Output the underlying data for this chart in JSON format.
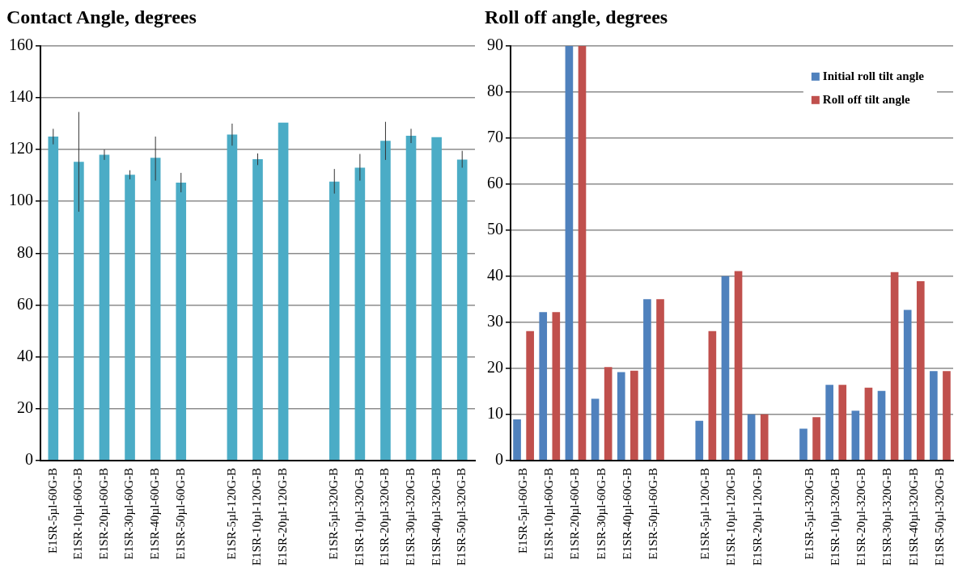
{
  "chart_data": [
    {
      "type": "bar",
      "title": "Contact Angle, degrees",
      "categories": [
        "E1SR-5µl-60G-B",
        "E1SR-10µl-60G-B",
        "E1SR-20µl-60G-B",
        "E1SR-30µl-60G-B",
        "E1SR-40µl-60G-B",
        "E1SR-50µl-60G-B",
        null,
        "E1SR-5µl-120G-B",
        "E1SR-10µl-120G-B",
        "E1SR-20µl-120G-B",
        null,
        "E1SR-5µl-320G-B",
        "E1SR-10µl-320G-B",
        "E1SR-20µl-320G-B",
        "E1SR-30µl-320G-B",
        "E1SR-40µl-320G-B",
        "E1SR-50µl-320G-B"
      ],
      "values": [
        125,
        115.3,
        118,
        110.3,
        116.8,
        107.2,
        null,
        125.8,
        116.3,
        130.4,
        null,
        107.6,
        113,
        123.4,
        125.3,
        124.8,
        116.1
      ],
      "errors": [
        [
          122,
          128
        ],
        [
          96,
          134.5
        ],
        [
          116,
          120
        ],
        [
          108.5,
          112
        ],
        [
          108,
          125
        ],
        [
          103.5,
          111
        ],
        null,
        [
          121.5,
          130
        ],
        [
          114,
          118.5
        ],
        null,
        null,
        [
          103,
          112.5
        ],
        [
          108,
          118.3
        ],
        [
          116,
          130.7
        ],
        [
          122.5,
          128
        ],
        null,
        [
          113,
          119.5
        ]
      ],
      "color": "#4bacc6",
      "ylim": [
        0,
        160
      ],
      "yticks": [
        0,
        20,
        40,
        60,
        80,
        100,
        120,
        140,
        160
      ],
      "grid": "y",
      "legend": false
    },
    {
      "type": "bar",
      "title": "Roll off angle, degrees",
      "categories": [
        "E1SR-5µl-60G-B",
        "E1SR-10µl-60G-B",
        "E1SR-20µl-60G-B",
        "E1SR-30µl-60G-B",
        "E1SR-40µl-60G-B",
        "E1SR-50µl-60G-B",
        null,
        "E1SR-5µl-120G-B",
        "E1SR-10µl-120G-B",
        "E1SR-20µl-120G-B",
        null,
        "E1SR-5µl-320G-B",
        "E1SR-10µl-320G-B",
        "E1SR-20µl-320G-B",
        "E1SR-30µl-320G-B",
        "E1SR-40µl-320G-B",
        "E1SR-50µl-320G-B"
      ],
      "series": [
        {
          "name": "Initial roll tilt angle",
          "color": "#4f81bd",
          "values": [
            8.9,
            32.2,
            90,
            13.4,
            19.2,
            35,
            null,
            8.6,
            40,
            10,
            null,
            6.9,
            16.4,
            10.8,
            15.1,
            32.7,
            19.4
          ]
        },
        {
          "name": "Roll off tilt angle",
          "color": "#c0504d",
          "values": [
            28.1,
            32.2,
            90,
            20.3,
            19.5,
            35,
            null,
            28.1,
            41.1,
            10,
            null,
            9.4,
            16.4,
            15.8,
            40.9,
            38.9,
            19.4
          ]
        }
      ],
      "ylim": [
        0,
        90
      ],
      "yticks": [
        0,
        10,
        20,
        30,
        40,
        50,
        60,
        70,
        80,
        90
      ],
      "grid": "y",
      "legend": "top right"
    }
  ]
}
